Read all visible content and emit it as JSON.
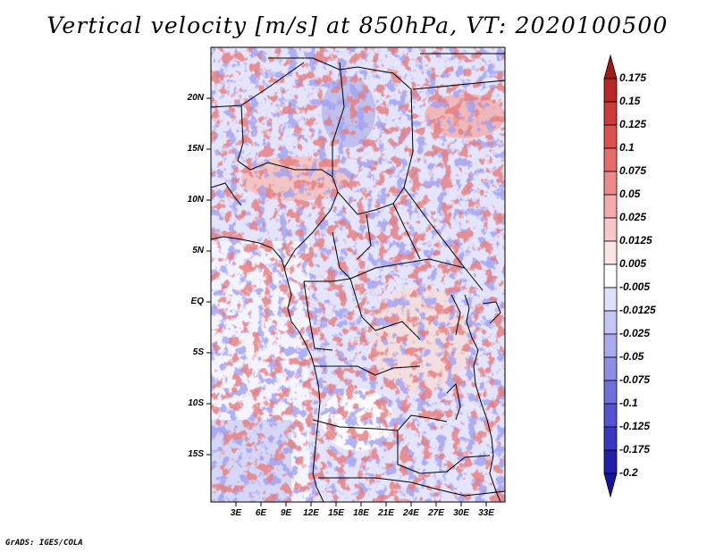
{
  "title": "Vertical velocity [m/s] at 850hPa, VT: 2020100500",
  "credit": "GrADS: IGES/COLA",
  "colors": {
    "land_border": "#000000",
    "frame": "#000000"
  },
  "map": {
    "lon_range": [
      0,
      35
    ],
    "lat_range": [
      -20,
      25
    ],
    "lat_labels": [
      "20N",
      "15N",
      "10N",
      "5N",
      "EQ",
      "5S",
      "10S",
      "15S"
    ],
    "lon_labels": [
      "3E",
      "6E",
      "9E",
      "12E",
      "15E",
      "18E",
      "21E",
      "24E",
      "27E",
      "30E",
      "33E"
    ]
  },
  "colorbar": {
    "labels": [
      "0.175",
      "0.15",
      "0.125",
      "0.1",
      "0.075",
      "0.05",
      "0.025",
      "0.0125",
      "0.005",
      "-0.005",
      "-0.0125",
      "-0.025",
      "-0.05",
      "-0.075",
      "-0.1",
      "-0.125",
      "-0.175",
      "-0.2"
    ],
    "colors": [
      "#a01818",
      "#b82828",
      "#cc3a3a",
      "#dc5050",
      "#e66c6c",
      "#ee8a8a",
      "#f4aaaa",
      "#f8c8c8",
      "#fce4e4",
      "#ffffff",
      "#e0e0fa",
      "#c6c6f4",
      "#aaaaee",
      "#8e8ee6",
      "#7070dc",
      "#5454d0",
      "#3838c0",
      "#2020a8",
      "#14149a"
    ]
  }
}
